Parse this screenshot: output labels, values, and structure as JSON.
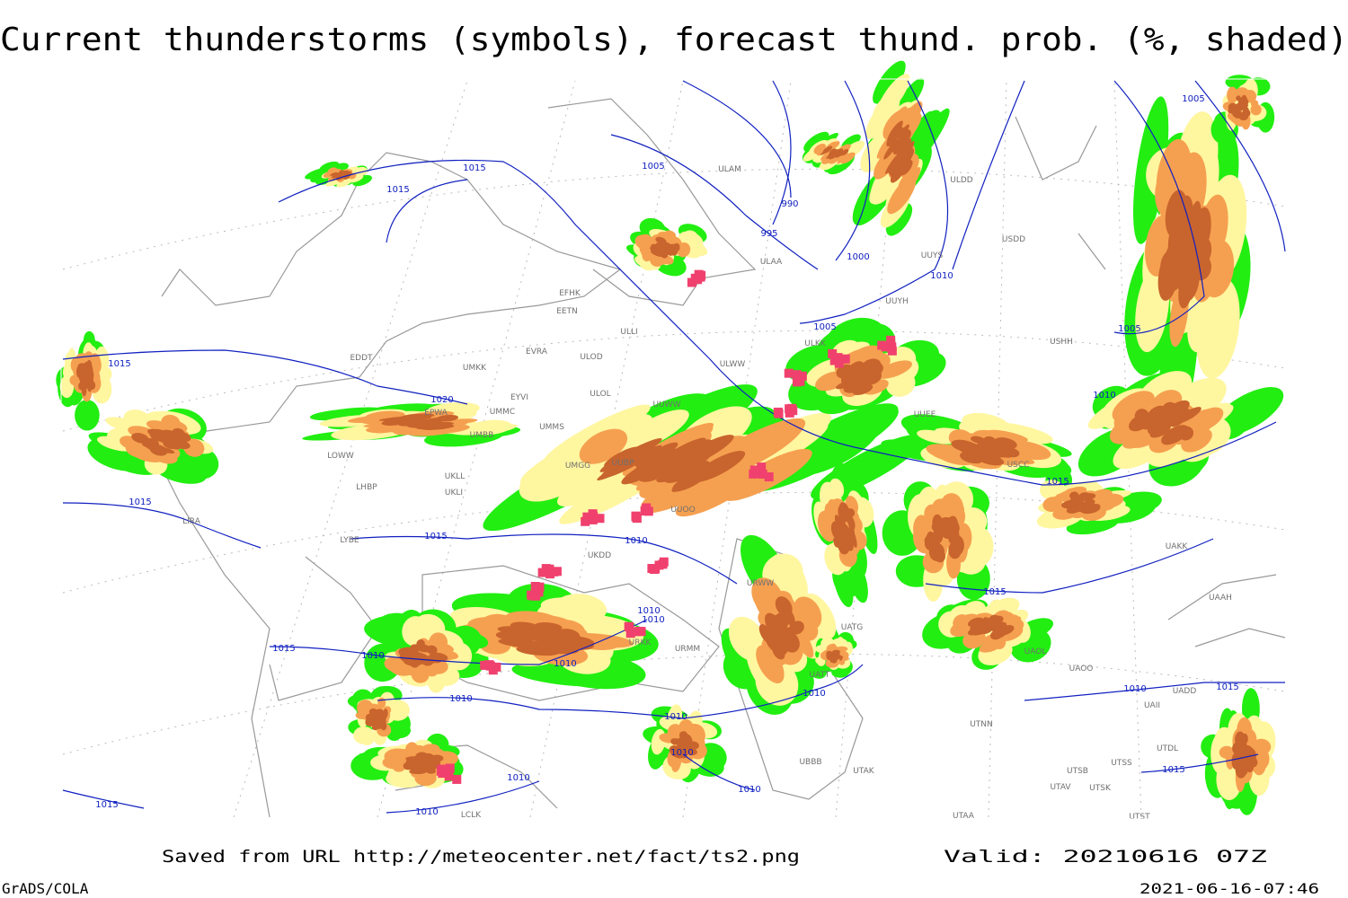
{
  "title": "Current thunderstorms (symbols), forecast thund. prob. (%, shaded)",
  "footer": {
    "source": "Saved from URL http://meteocenter.net/fact/ts2.png",
    "valid": "Valid: 20210616 07Z",
    "software": "GrADS/COLA",
    "timestamp": "2021-06-16-07:46"
  },
  "isobar_labels": [
    "1015",
    "1015",
    "1005",
    "990",
    "995",
    "1000",
    "1010",
    "1005",
    "1005",
    "1005",
    "1010",
    "1015",
    "1020",
    "1015",
    "1015",
    "1010",
    "1015",
    "1015",
    "1010",
    "1010",
    "1015",
    "1010",
    "1010",
    "1010",
    "1010",
    "1010",
    "1010",
    "1015",
    "1010",
    "1010",
    "1010",
    "1015",
    "1015",
    "1010"
  ],
  "station_labels": [
    "ULAM",
    "ULDD",
    "USDD",
    "ULAA",
    "UUYS",
    "EFHK",
    "EETN",
    "UUYH",
    "ULLI",
    "ULKK",
    "USHH",
    "EVRA",
    "ULOD",
    "EDDT",
    "UMKK",
    "ULWW",
    "EYVI",
    "ULOL",
    "UMMC",
    "UUWW",
    "EPWA",
    "UUEE",
    "UMMS",
    "UMBB",
    "UUBP",
    "UMGG",
    "UKLL",
    "UKLI",
    "LHBP",
    "LOWW",
    "LIRA",
    "LYBE",
    "UUOO",
    "UKDD",
    "URWW",
    "UATG",
    "URKK",
    "URMM",
    "UATT",
    "UAOL",
    "UAOO",
    "UTNN",
    "UAKK",
    "UAAH",
    "UAII",
    "UTDL",
    "UTSS",
    "UTSB",
    "UTAV",
    "UTSK",
    "UTST",
    "UTAA",
    "LCLK",
    "UBBB",
    "UTAK",
    "UADD",
    "USCC"
  ]
}
